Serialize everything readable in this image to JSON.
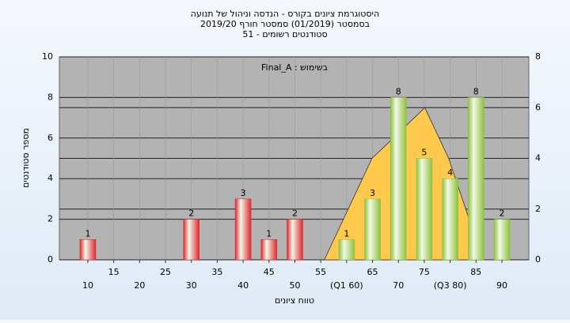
{
  "chart_data": {
    "type": "bar",
    "title": "היסטוגרמת ציונים בקורס - הנדסה וניהול של תנועה",
    "subtitle": "בסמסטר (01/2019) סמסטר חורף 2019/20",
    "subtitle2": "סטודנטים רשומים - 51",
    "annotation": "בשימוש : Final_A",
    "x_label": "טווח ציונים",
    "y_label": "מספר סטודנטים",
    "x": [
      10,
      15,
      20,
      25,
      30,
      35,
      40,
      45,
      50,
      55,
      60,
      65,
      70,
      75,
      80,
      85,
      90
    ],
    "values": [
      1,
      0,
      0,
      0,
      2,
      0,
      3,
      1,
      2,
      0,
      1,
      3,
      8,
      5,
      4,
      8,
      2
    ],
    "colors": [
      "#e0262e",
      "#e0262e",
      "#e0262e",
      "#e0262e",
      "#e0262e",
      "#e0262e",
      "#e0262e",
      "#e0262e",
      "#e0262e",
      "#e0262e",
      "#8cc23a",
      "#8cc23a",
      "#8cc23a",
      "#8cc23a",
      "#8cc23a",
      "#8cc23a",
      "#8cc23a"
    ],
    "xlim": [
      4.5,
      95.2
    ],
    "xticks": [
      10,
      15,
      20,
      25,
      30,
      35,
      40,
      45,
      50,
      55,
      {
        "value": 60,
        "label": "(Q1 60)"
      },
      65,
      70,
      75,
      {
        "value": 80,
        "label": "(Q3 80)"
      },
      85,
      90
    ],
    "ylim": [
      0,
      10
    ],
    "yticks": [
      0,
      2,
      4,
      6,
      8,
      10
    ],
    "y2lim": [
      0,
      8
    ],
    "y2ticks": [
      0,
      2,
      4,
      6,
      8
    ],
    "curve": {
      "type": "area",
      "axis": "y2",
      "color": "#ffc94d",
      "x": [
        55.7,
        64.9,
        68,
        75.1,
        79.7,
        84
      ],
      "values": [
        0,
        4.0,
        4.6,
        6.0,
        4.0,
        1.4
      ]
    },
    "grid": true
  }
}
